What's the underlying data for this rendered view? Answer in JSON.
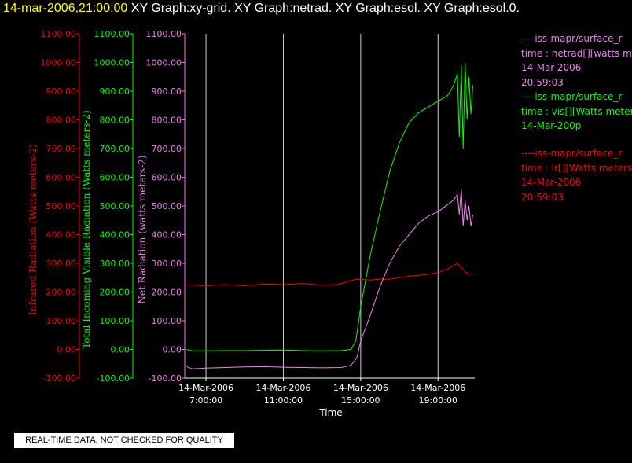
{
  "header": {
    "timestamp": "14-mar-2006,21:00:00",
    "graphs": "XY Graph:xy-grid.  XY Graph:netrad.  XY Graph:esol.  XY Graph:esol.0."
  },
  "notice": "REAL-TIME DATA, NOT CHECKED FOR QUALITY",
  "legend": [
    {
      "color": "#ee82ee",
      "lines": [
        "----iss-mapr/surface_r",
        "time : netrad[][watts me",
        "14-Mar-2006",
        "20:59:03"
      ]
    },
    {
      "color": "#00ff00",
      "lines": [
        "----iss-mapr/surface_r",
        "time : vis[][Watts meter",
        "14-Mar-200p"
      ]
    },
    {
      "color": "#ff0000",
      "lines": [
        "----iss-mapr/surface_r",
        "time : ir[][Watts meters",
        "14-Mar-2006",
        "20:59:03"
      ]
    }
  ],
  "chart_data": {
    "type": "line",
    "xlabel": "Time",
    "x_ticks": [
      {
        "hour": 7,
        "date": "14-Mar-2006",
        "time": "7:00:00"
      },
      {
        "hour": 11,
        "date": "14-Mar-2006",
        "time": "11:00:00"
      },
      {
        "hour": 15,
        "date": "14-Mar-2006",
        "time": "15:00:00"
      },
      {
        "hour": 19,
        "date": "14-Mar-2006",
        "time": "19:00:00"
      }
    ],
    "xlim_hours": [
      5.9,
      20.9
    ],
    "grid": "vertical lines at x ticks",
    "axes": [
      {
        "id": "ir",
        "label": "Infrared Radiation (Watts meters-2)",
        "color": "#ff0000",
        "ylim": [
          -100,
          1100
        ],
        "ticks": [
          "-100.00",
          "0.00",
          "100.00",
          "200.00",
          "300.00",
          "400.00",
          "500.00",
          "600.00",
          "700.00",
          "800.00",
          "900.00",
          "1000.00",
          "1100.00"
        ]
      },
      {
        "id": "vis",
        "label": "Total Incoming Visible Radiation (Watts meters-2)",
        "color": "#00ff00",
        "ylim": [
          -100,
          1100
        ],
        "ticks": [
          "-100.00",
          "0.00",
          "100.00",
          "200.00",
          "300.00",
          "400.00",
          "500.00",
          "600.00",
          "700.00",
          "800.00",
          "900.00",
          "1000.00",
          "1100.00"
        ]
      },
      {
        "id": "net",
        "label": "Net Radiation (watts meters-2)",
        "color": "#ee82ee",
        "ylim": [
          -100,
          1100
        ],
        "ticks": [
          "-100.00",
          "0.00",
          "100.00",
          "200.00",
          "300.00",
          "400.00",
          "500.00",
          "600.00",
          "700.00",
          "800.00",
          "900.00",
          "1000.00",
          "1100.00"
        ]
      }
    ],
    "series": [
      {
        "axis": "ir",
        "color": "#ff0000",
        "points": [
          [
            6.0,
            225
          ],
          [
            7.0,
            222
          ],
          [
            8.0,
            226
          ],
          [
            9.0,
            222
          ],
          [
            10.0,
            228
          ],
          [
            11.0,
            226
          ],
          [
            12.0,
            230
          ],
          [
            13.0,
            224
          ],
          [
            13.8,
            226
          ],
          [
            14.5,
            240
          ],
          [
            14.8,
            245
          ],
          [
            15.5,
            242
          ],
          [
            16.0,
            245
          ],
          [
            16.5,
            245
          ],
          [
            17.0,
            250
          ],
          [
            17.5,
            255
          ],
          [
            18.0,
            258
          ],
          [
            18.5,
            262
          ],
          [
            19.0,
            268
          ],
          [
            19.5,
            280
          ],
          [
            20.0,
            300
          ],
          [
            20.2,
            285
          ],
          [
            20.5,
            265
          ],
          [
            20.8,
            262
          ]
        ]
      },
      {
        "axis": "vis",
        "color": "#00ff00",
        "points": [
          [
            6.0,
            0
          ],
          [
            6.3,
            -5
          ],
          [
            7.0,
            -5
          ],
          [
            8.0,
            -4
          ],
          [
            9.0,
            -4
          ],
          [
            10.0,
            -3
          ],
          [
            11.0,
            -2
          ],
          [
            12.0,
            -4
          ],
          [
            13.0,
            -5
          ],
          [
            14.0,
            -4
          ],
          [
            14.5,
            0
          ],
          [
            14.75,
            30
          ],
          [
            15.0,
            150
          ],
          [
            15.5,
            330
          ],
          [
            16.0,
            480
          ],
          [
            16.5,
            620
          ],
          [
            17.0,
            720
          ],
          [
            17.5,
            790
          ],
          [
            18.0,
            825
          ],
          [
            18.5,
            845
          ],
          [
            19.0,
            865
          ],
          [
            19.5,
            885
          ],
          [
            19.8,
            920
          ],
          [
            20.0,
            960
          ],
          [
            20.1,
            740
          ],
          [
            20.2,
            990
          ],
          [
            20.3,
            700
          ],
          [
            20.4,
            1000
          ],
          [
            20.5,
            800
          ],
          [
            20.6,
            950
          ],
          [
            20.7,
            820
          ],
          [
            20.8,
            920
          ]
        ]
      },
      {
        "axis": "net",
        "color": "#ee82ee",
        "points": [
          [
            6.0,
            -60
          ],
          [
            6.3,
            -68
          ],
          [
            7.0,
            -65
          ],
          [
            8.0,
            -63
          ],
          [
            9.0,
            -61
          ],
          [
            10.0,
            -60
          ],
          [
            11.0,
            -62
          ],
          [
            12.0,
            -63
          ],
          [
            13.0,
            -64
          ],
          [
            14.0,
            -63
          ],
          [
            14.5,
            -55
          ],
          [
            14.8,
            -30
          ],
          [
            15.0,
            30
          ],
          [
            15.5,
            120
          ],
          [
            16.0,
            220
          ],
          [
            16.5,
            300
          ],
          [
            17.0,
            360
          ],
          [
            17.5,
            400
          ],
          [
            18.0,
            440
          ],
          [
            18.5,
            465
          ],
          [
            19.0,
            480
          ],
          [
            19.5,
            505
          ],
          [
            19.8,
            520
          ],
          [
            20.0,
            540
          ],
          [
            20.1,
            470
          ],
          [
            20.2,
            560
          ],
          [
            20.3,
            430
          ],
          [
            20.4,
            520
          ],
          [
            20.5,
            450
          ],
          [
            20.6,
            500
          ],
          [
            20.7,
            430
          ],
          [
            20.8,
            470
          ]
        ]
      }
    ]
  }
}
